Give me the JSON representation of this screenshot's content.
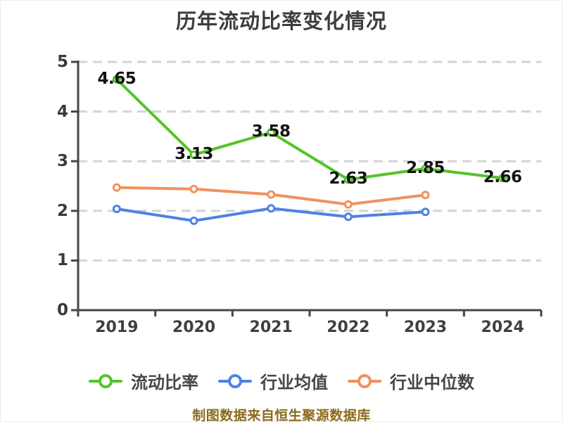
{
  "chart_data": {
    "type": "line",
    "title": "历年流动比率变化情况",
    "categories": [
      "2019",
      "2020",
      "2021",
      "2022",
      "2023",
      "2024"
    ],
    "series": [
      {
        "name": "流动比率",
        "color": "#55c32a",
        "values": [
          4.65,
          3.13,
          3.58,
          2.63,
          2.85,
          2.66
        ],
        "point_labels": [
          "4.65",
          "3.13",
          "3.58",
          "2.63",
          "2.85",
          "2.66"
        ],
        "labeled": true
      },
      {
        "name": "行业均值",
        "color": "#4e82e4",
        "values": [
          2.04,
          1.8,
          2.05,
          1.88,
          1.98
        ],
        "labeled": false
      },
      {
        "name": "行业中位数",
        "color": "#f2915f",
        "values": [
          2.47,
          2.44,
          2.33,
          2.13,
          2.32
        ],
        "labeled": false
      }
    ],
    "ylim": [
      0,
      5
    ],
    "yticks": [
      0,
      1,
      2,
      3,
      4,
      5
    ],
    "xlabel": "",
    "ylabel": "",
    "grid": "dashed horizontal gridlines",
    "legend_position": "bottom"
  },
  "footer": {
    "source_note": "制图数据来自恒生聚源数据库"
  },
  "colors": {
    "background": "#ffffff",
    "title_text": "#3d3d3d",
    "axis_line": "#454545",
    "axis_tick_text": "#3a3a3a",
    "grid_line": "#d4d4d4",
    "data_label_text": "#131313",
    "marker_fill": "#ffffff",
    "legend_text": "#464646",
    "footer_text": "#8b6b1d",
    "series_green": "#55c32a",
    "series_blue": "#4e82e4",
    "series_orange": "#f2915f"
  }
}
